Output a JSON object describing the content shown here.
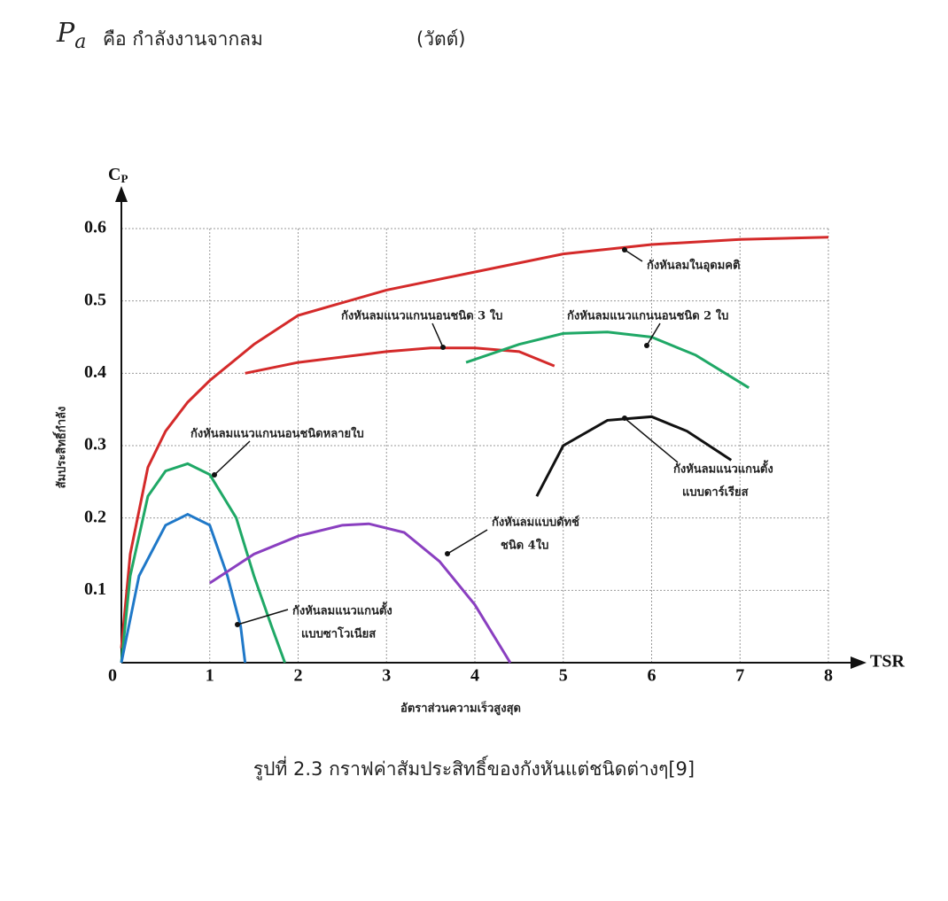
{
  "header": {
    "symbol": "P",
    "symbol_sub": "a",
    "definition": "คือ กำลังงานจากลม",
    "unit": "(วัตต์)"
  },
  "caption": "รูปที่ 2.3 กราฟค่าสัมประสิทธิ์ของกังหันแต่ชนิดต่างๆ[9]",
  "chart_data": {
    "type": "line",
    "x_axis_title": "TSR",
    "y_axis_title": "C",
    "y_axis_title_sub": "P",
    "xlabel": "อัตราส่วนความเร็วสูงสุด",
    "ylabel": "สัมประสิทธิ์กำลัง",
    "xlim": [
      0,
      8
    ],
    "ylim": [
      0,
      0.6
    ],
    "xticks": [
      0,
      1,
      2,
      3,
      4,
      5,
      6,
      7,
      8
    ],
    "yticks": [
      0.1,
      0.2,
      0.3,
      0.4,
      0.5,
      0.6
    ],
    "grid": true,
    "series": [
      {
        "name": [
          "กังหันลมในอุดมคติ"
        ],
        "color": "#d42a2a",
        "x": [
          0,
          0.1,
          0.3,
          0.5,
          0.75,
          1,
          1.5,
          2,
          3,
          4,
          5,
          6,
          7,
          8
        ],
        "values": [
          0.02,
          0.15,
          0.27,
          0.32,
          0.36,
          0.39,
          0.44,
          0.48,
          0.515,
          0.54,
          0.565,
          0.578,
          0.585,
          0.588
        ]
      },
      {
        "name": [
          "กังหันลมแนวแกนนอนชนิด 3 ใบ"
        ],
        "color": "#d42a2a",
        "x": [
          1.4,
          2,
          3,
          3.5,
          4,
          4.5,
          4.9
        ],
        "values": [
          0.4,
          0.415,
          0.43,
          0.435,
          0.435,
          0.43,
          0.41
        ]
      },
      {
        "name": [
          "กังหันลมแนวแกนนอนชนิด 2 ใบ"
        ],
        "color": "#1fa866",
        "x": [
          3.9,
          4.5,
          5,
          5.5,
          6,
          6.5,
          7.1
        ],
        "values": [
          0.415,
          0.44,
          0.455,
          0.457,
          0.45,
          0.425,
          0.38
        ]
      },
      {
        "name": [
          "กังหันลมแนวแกนตั้ง",
          "แบบดาร์เรียส"
        ],
        "color": "#111111",
        "x": [
          4.7,
          5,
          5.5,
          6,
          6.4,
          6.9
        ],
        "values": [
          0.23,
          0.3,
          0.335,
          0.34,
          0.32,
          0.28
        ]
      },
      {
        "name": [
          "กังหันลมแนวแกนนอนชนิดหลายใบ"
        ],
        "color": "#1fa866",
        "x": [
          0,
          0.1,
          0.3,
          0.5,
          0.75,
          1,
          1.3,
          1.5,
          1.7,
          1.85
        ],
        "values": [
          0,
          0.12,
          0.23,
          0.265,
          0.275,
          0.26,
          0.2,
          0.12,
          0.05,
          0
        ]
      },
      {
        "name": [
          "กังหันลมแนวแกนตั้ง",
          "แบบซาโวเนียส"
        ],
        "color": "#1f78c8",
        "x": [
          0,
          0.2,
          0.5,
          0.75,
          1,
          1.2,
          1.35,
          1.4
        ],
        "values": [
          0,
          0.12,
          0.19,
          0.205,
          0.19,
          0.12,
          0.05,
          0
        ]
      },
      {
        "name": [
          "กังหันลมแบบดัทช์",
          "ชนิด 4ใบ"
        ],
        "color": "#8a3fc0",
        "x": [
          1,
          1.5,
          2,
          2.5,
          2.8,
          3.2,
          3.6,
          4,
          4.4
        ],
        "values": [
          0.11,
          0.15,
          0.175,
          0.19,
          0.192,
          0.18,
          0.14,
          0.08,
          0
        ]
      }
    ]
  }
}
